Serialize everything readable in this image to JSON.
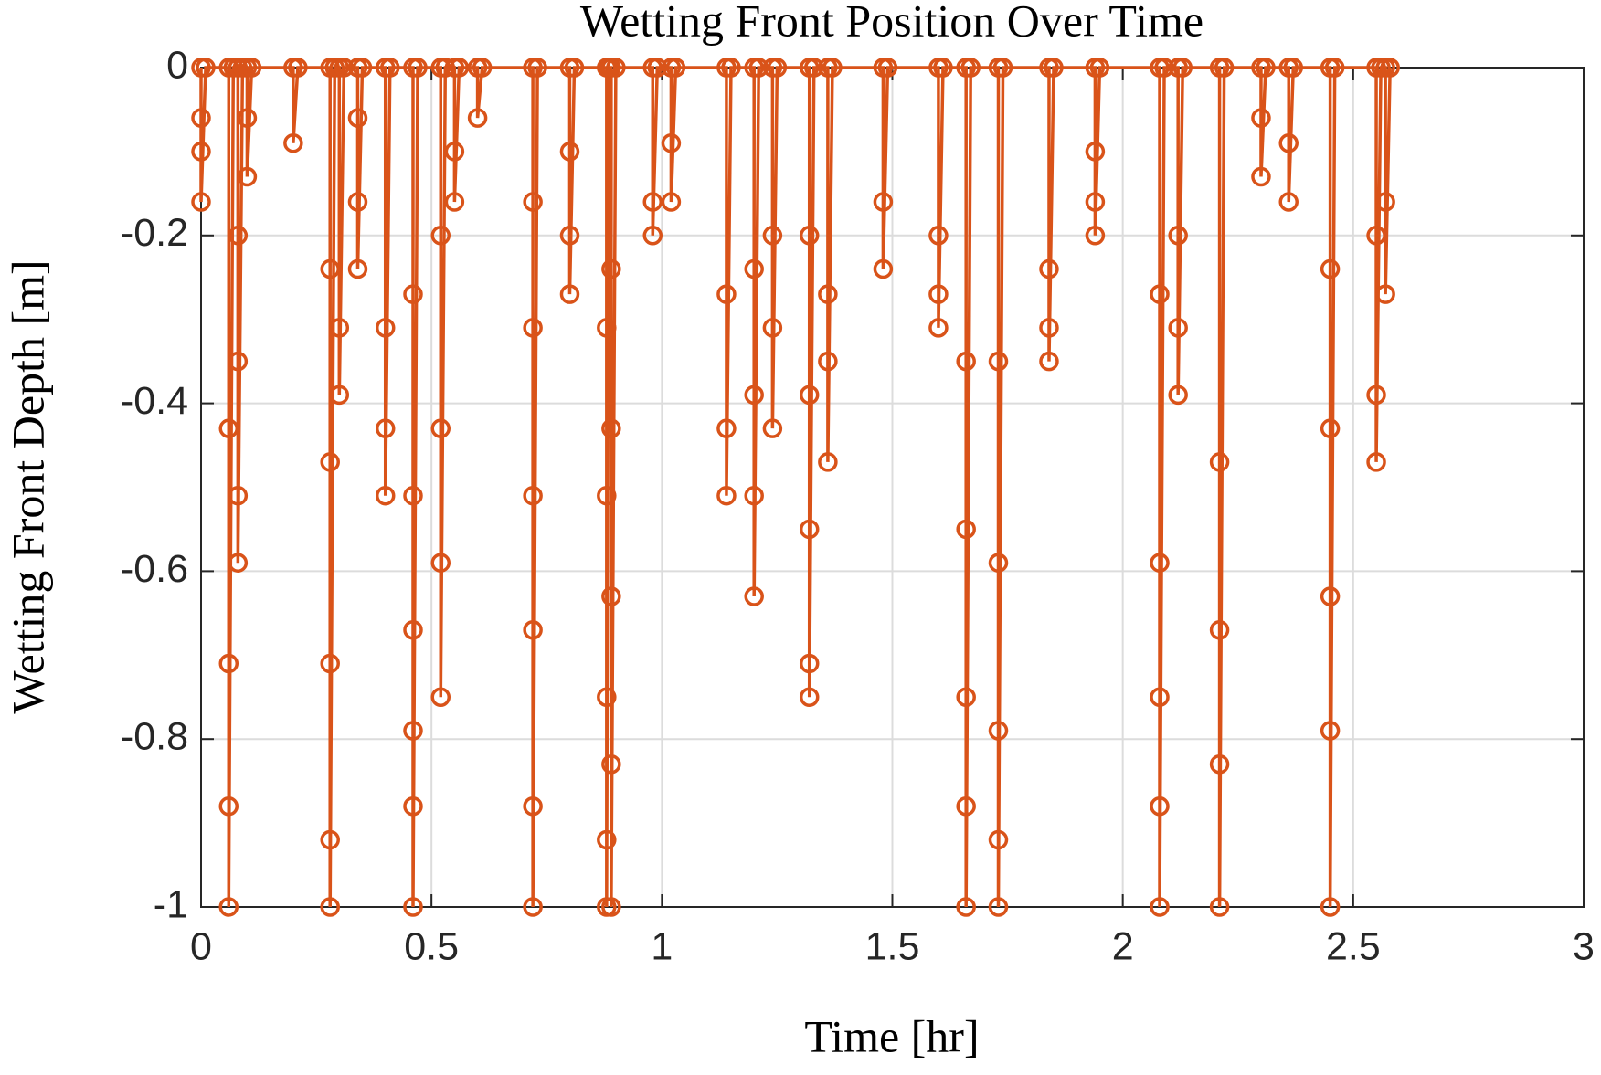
{
  "chart_data": {
    "type": "line",
    "title": "Wetting Front Position Over Time",
    "xlabel": "Time [hr]",
    "ylabel": "Wetting Front Depth [m]",
    "xlim": [
      0,
      3
    ],
    "xticks": [
      0,
      0.5,
      1,
      1.5,
      2,
      2.5,
      3
    ],
    "ylim": [
      -1,
      0
    ],
    "yticks": [
      -1,
      -0.8,
      -0.6,
      -0.4,
      -0.2,
      0
    ],
    "grid": true,
    "x": [
      0,
      0,
      0,
      0,
      0.01,
      0.06,
      0.06,
      0.06,
      0.06,
      0.06,
      0.07,
      0.08,
      0.08,
      0.08,
      0.08,
      0.08,
      0.09,
      0.1,
      0.1,
      0.1,
      0.11,
      0.2,
      0.2,
      0.21,
      0.28,
      0.28,
      0.28,
      0.28,
      0.28,
      0.28,
      0.29,
      0.3,
      0.3,
      0.3,
      0.31,
      0.34,
      0.34,
      0.34,
      0.34,
      0.35,
      0.4,
      0.4,
      0.4,
      0.4,
      0.41,
      0.46,
      0.46,
      0.46,
      0.46,
      0.46,
      0.46,
      0.46,
      0.47,
      0.52,
      0.52,
      0.52,
      0.52,
      0.52,
      0.53,
      0.55,
      0.55,
      0.55,
      0.56,
      0.6,
      0.6,
      0.61,
      0.72,
      0.72,
      0.72,
      0.72,
      0.72,
      0.72,
      0.72,
      0.73,
      0.8,
      0.8,
      0.8,
      0.8,
      0.81,
      0.88,
      0.88,
      0.88,
      0.88,
      0.88,
      0.88,
      0.885,
      0.89,
      0.89,
      0.89,
      0.89,
      0.89,
      0.89,
      0.9,
      0.98,
      0.98,
      0.98,
      0.99,
      1.02,
      1.02,
      1.02,
      1.03,
      1.14,
      1.14,
      1.14,
      1.14,
      1.15,
      1.2,
      1.2,
      1.2,
      1.2,
      1.2,
      1.21,
      1.24,
      1.24,
      1.24,
      1.24,
      1.25,
      1.32,
      1.32,
      1.32,
      1.32,
      1.32,
      1.32,
      1.33,
      1.36,
      1.36,
      1.36,
      1.36,
      1.37,
      1.48,
      1.48,
      1.48,
      1.49,
      1.6,
      1.6,
      1.6,
      1.6,
      1.61,
      1.66,
      1.66,
      1.66,
      1.66,
      1.66,
      1.66,
      1.67,
      1.73,
      1.73,
      1.73,
      1.73,
      1.73,
      1.73,
      1.74,
      1.84,
      1.84,
      1.84,
      1.84,
      1.85,
      1.94,
      1.94,
      1.94,
      1.94,
      1.95,
      2.08,
      2.08,
      2.08,
      2.08,
      2.08,
      2.08,
      2.09,
      2.12,
      2.12,
      2.12,
      2.12,
      2.13,
      2.21,
      2.21,
      2.21,
      2.21,
      2.21,
      2.22,
      2.3,
      2.3,
      2.3,
      2.31,
      2.36,
      2.36,
      2.36,
      2.37,
      2.45,
      2.45,
      2.45,
      2.45,
      2.45,
      2.45,
      2.46,
      2.55,
      2.55,
      2.55,
      2.55,
      2.56,
      2.57,
      2.57,
      2.57,
      2.58
    ],
    "series": [
      {
        "color": "#D95319",
        "values": [
          0,
          -0.06,
          -0.1,
          -0.16,
          0,
          0,
          -0.43,
          -0.71,
          -0.88,
          -1,
          0,
          0,
          -0.2,
          -0.35,
          -0.51,
          -0.59,
          0,
          0,
          -0.06,
          -0.13,
          0,
          0,
          -0.09,
          0,
          0,
          -0.24,
          -0.47,
          -0.71,
          -0.92,
          -1,
          0,
          0,
          -0.31,
          -0.39,
          0,
          0,
          -0.06,
          -0.16,
          -0.24,
          0,
          0,
          -0.31,
          -0.43,
          -0.51,
          0,
          0,
          -0.27,
          -0.51,
          -0.67,
          -0.79,
          -0.88,
          -1,
          0,
          0,
          -0.2,
          -0.43,
          -0.59,
          -0.75,
          0,
          0,
          -0.1,
          -0.16,
          0,
          0,
          -0.06,
          0,
          0,
          -0.16,
          -0.31,
          -0.51,
          -0.67,
          -0.88,
          -1,
          0,
          0,
          -0.1,
          -0.2,
          -0.27,
          0,
          0,
          -0.31,
          -0.51,
          -0.75,
          -0.92,
          -1,
          0,
          0,
          -0.24,
          -0.43,
          -0.63,
          -0.83,
          -1,
          0,
          0,
          -0.16,
          -0.2,
          0,
          0,
          -0.09,
          -0.16,
          0,
          0,
          -0.27,
          -0.43,
          -0.51,
          0,
          0,
          -0.24,
          -0.39,
          -0.51,
          -0.63,
          0,
          0,
          -0.2,
          -0.31,
          -0.43,
          0,
          0,
          -0.2,
          -0.39,
          -0.55,
          -0.71,
          -0.75,
          0,
          0,
          -0.27,
          -0.35,
          -0.47,
          0,
          0,
          -0.16,
          -0.24,
          0,
          0,
          -0.2,
          -0.27,
          -0.31,
          0,
          0,
          -0.35,
          -0.55,
          -0.75,
          -0.88,
          -1,
          0,
          0,
          -0.35,
          -0.59,
          -0.79,
          -0.92,
          -1,
          0,
          0,
          -0.24,
          -0.31,
          -0.35,
          0,
          0,
          -0.1,
          -0.16,
          -0.2,
          0,
          0,
          -0.27,
          -0.59,
          -0.75,
          -0.88,
          -1,
          0,
          0,
          -0.2,
          -0.31,
          -0.39,
          0,
          0,
          -0.47,
          -0.67,
          -0.83,
          -1,
          0,
          0,
          -0.06,
          -0.13,
          0,
          0,
          -0.09,
          -0.16,
          0,
          0,
          -0.24,
          -0.43,
          -0.63,
          -0.79,
          -1,
          0,
          0,
          -0.2,
          -0.39,
          -0.47,
          0,
          0,
          -0.16,
          -0.27,
          0
        ]
      }
    ]
  }
}
